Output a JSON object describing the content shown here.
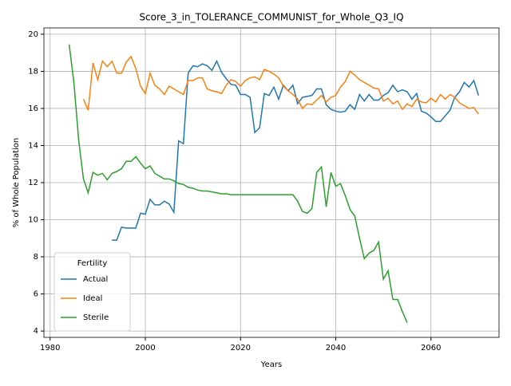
{
  "chart_data": {
    "type": "line",
    "title": "Score_3_in_TOLERANCE_COMMUNIST_for_Whole_Q3_IQ",
    "xlabel": "Years",
    "ylabel": "% of Whole Population",
    "x": [
      1984,
      1985,
      1986,
      1987,
      1988,
      1989,
      1990,
      1991,
      1992,
      1993,
      1994,
      1995,
      1996,
      1997,
      1998,
      1999,
      2000,
      2001,
      2002,
      2003,
      2004,
      2005,
      2006,
      2007,
      2008,
      2009,
      2010,
      2011,
      2012,
      2013,
      2014,
      2015,
      2016,
      2017,
      2018,
      2019,
      2020,
      2021,
      2022,
      2023,
      2024,
      2025,
      2026,
      2027,
      2028,
      2029,
      2030,
      2031,
      2032,
      2033,
      2034,
      2035,
      2036,
      2037,
      2038,
      2039,
      2040,
      2041,
      2042,
      2043,
      2044,
      2045,
      2046,
      2047,
      2048,
      2049,
      2050,
      2051,
      2052,
      2053,
      2054,
      2055,
      2056,
      2057,
      2058,
      2059,
      2060,
      2061,
      2062,
      2063,
      2064,
      2065,
      2066,
      2067,
      2068,
      2069,
      2070
    ],
    "series": [
      {
        "name": "Actual",
        "color": "#1f77b4",
        "values": [
          null,
          null,
          null,
          null,
          null,
          null,
          null,
          null,
          null,
          8.9,
          8.9,
          9.6,
          9.55,
          9.55,
          9.55,
          10.35,
          10.3,
          11.1,
          10.8,
          10.8,
          11.0,
          10.85,
          10.4,
          14.25,
          14.1,
          17.9,
          18.3,
          18.25,
          18.4,
          18.3,
          18.05,
          18.55,
          17.95,
          17.6,
          17.3,
          17.25,
          16.75,
          16.75,
          16.6,
          14.7,
          14.95,
          16.8,
          16.7,
          17.15,
          16.5,
          17.25,
          16.95,
          17.25,
          16.25,
          16.6,
          16.65,
          16.7,
          17.05,
          17.05,
          16.2,
          15.95,
          15.85,
          15.8,
          15.85,
          16.2,
          15.95,
          16.75,
          16.4,
          16.75,
          16.45,
          16.45,
          16.7,
          16.85,
          17.25,
          16.9,
          17.0,
          16.9,
          16.5,
          16.8,
          15.85,
          15.75,
          15.55,
          15.3,
          15.3,
          15.6,
          15.9,
          16.6,
          16.9,
          17.4,
          17.15,
          17.5,
          16.7
        ]
      },
      {
        "name": "Ideal",
        "color": "#ff7f0e",
        "values": [
          null,
          null,
          null,
          16.5,
          15.9,
          18.45,
          17.55,
          18.55,
          18.25,
          18.55,
          17.9,
          17.9,
          18.5,
          18.8,
          18.15,
          17.2,
          16.8,
          17.9,
          17.25,
          17.05,
          16.75,
          17.2,
          17.05,
          16.9,
          16.75,
          17.5,
          17.5,
          17.65,
          17.65,
          17.05,
          16.95,
          16.9,
          16.8,
          17.25,
          17.55,
          17.45,
          17.2,
          17.5,
          17.65,
          17.7,
          17.55,
          18.1,
          18.0,
          17.85,
          17.65,
          17.2,
          16.95,
          16.75,
          16.5,
          16.0,
          16.25,
          16.2,
          16.45,
          16.7,
          16.35,
          16.6,
          16.7,
          17.15,
          17.45,
          18.0,
          17.8,
          17.55,
          17.4,
          17.25,
          17.1,
          17.05,
          16.4,
          16.55,
          16.25,
          16.4,
          15.95,
          16.25,
          16.1,
          16.5,
          16.35,
          16.3,
          16.55,
          16.35,
          16.75,
          16.5,
          16.75,
          16.6,
          16.3,
          16.15,
          16.0,
          16.05,
          15.7
        ]
      },
      {
        "name": "Sterile",
        "color": "#2ca02c",
        "values": [
          19.45,
          17.4,
          14.3,
          12.2,
          11.45,
          12.55,
          12.4,
          12.5,
          12.15,
          12.5,
          12.6,
          12.75,
          13.15,
          13.15,
          13.4,
          13.05,
          12.75,
          12.9,
          12.5,
          12.35,
          12.2,
          12.2,
          12.1,
          11.95,
          11.9,
          11.75,
          11.7,
          11.6,
          11.55,
          11.55,
          11.5,
          11.45,
          11.4,
          11.4,
          11.35,
          11.35,
          11.35,
          11.35,
          11.35,
          11.35,
          11.35,
          11.35,
          11.35,
          11.35,
          11.35,
          11.35,
          11.35,
          11.35,
          11.0,
          10.45,
          10.35,
          10.6,
          12.55,
          12.85,
          10.7,
          12.55,
          11.8,
          11.95,
          11.3,
          10.55,
          10.2,
          9.0,
          7.9,
          8.2,
          8.35,
          8.8,
          6.8,
          7.25,
          5.7,
          5.7,
          5.05,
          4.45,
          null,
          null,
          null,
          null,
          null,
          null,
          null,
          null,
          null,
          null,
          null,
          null,
          null,
          null,
          null
        ]
      }
    ],
    "xlim": [
      1978.7,
      2074.3
    ],
    "ylim": [
      3.66,
      20.34
    ],
    "xticks": [
      1980,
      2000,
      2020,
      2040,
      2060
    ],
    "yticks": [
      4,
      6,
      8,
      10,
      12,
      14,
      16,
      18,
      20
    ],
    "grid": true,
    "legend_title": "Fertility",
    "legend_position": "lower left"
  }
}
